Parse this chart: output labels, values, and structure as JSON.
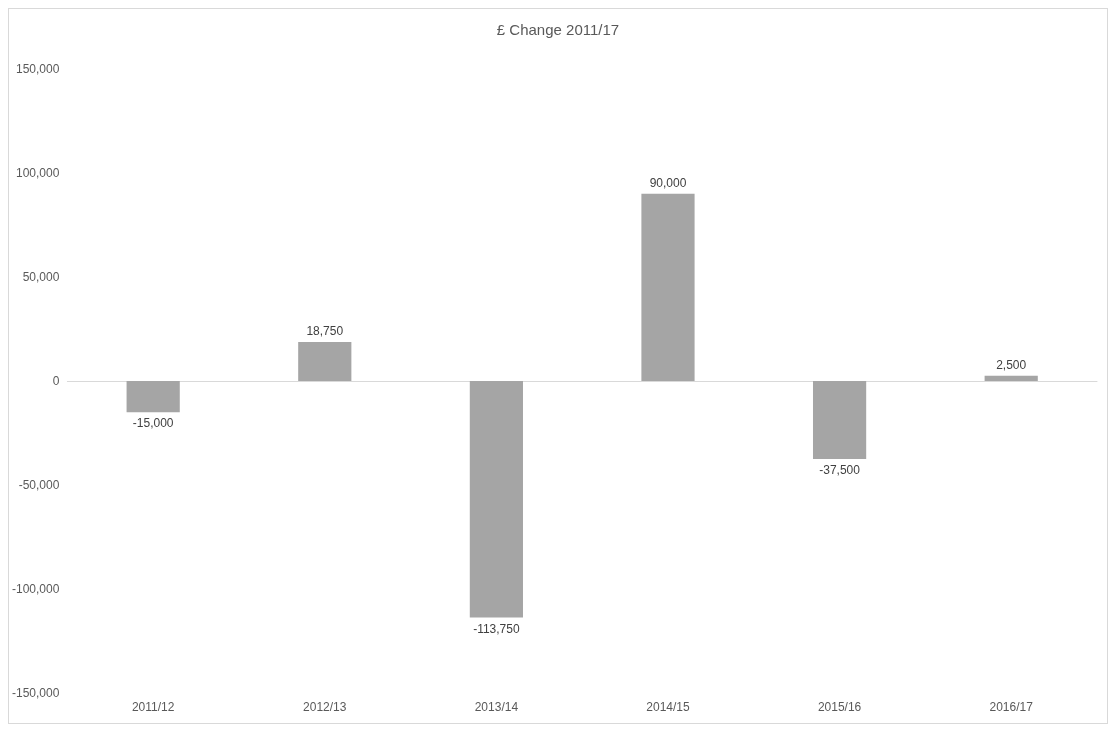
{
  "chart_data": {
    "type": "bar",
    "title": "£ Change 2011/17",
    "categories": [
      "2011/12",
      "2012/13",
      "2013/14",
      "2014/15",
      "2015/16",
      "2016/17"
    ],
    "values": [
      -15000,
      18750,
      -113750,
      90000,
      -37500,
      2500
    ],
    "value_labels": [
      "-15,000",
      "18,750",
      "-113,750",
      "90,000",
      "-37,500",
      "2,500"
    ],
    "color": "#a5a5a5",
    "ylim": [
      -150000,
      150000
    ],
    "yticks": [
      {
        "value": -150000,
        "label": "-150,000"
      },
      {
        "value": -100000,
        "label": "-100,000"
      },
      {
        "value": -50000,
        "label": "-50,000"
      },
      0,
      {
        "value": 50000,
        "label": "50,000"
      },
      {
        "value": 100000,
        "label": "100,000"
      },
      {
        "value": 150000,
        "label": "150,000"
      }
    ]
  }
}
